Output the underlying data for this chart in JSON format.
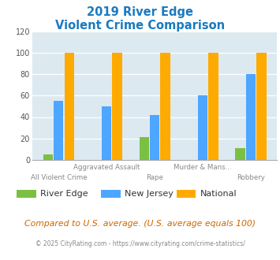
{
  "title_line1": "2019 River Edge",
  "title_line2": "Violent Crime Comparison",
  "title_color": "#1a7abf",
  "categories": [
    "All Violent Crime",
    "Aggravated Assault",
    "Rape",
    "Murder & Mans...",
    "Robbery"
  ],
  "top_labels": [
    "",
    "Aggravated Assault",
    "",
    "Murder & Mans...",
    ""
  ],
  "bottom_labels": [
    "All Violent Crime",
    "",
    "Rape",
    "",
    "Robbery"
  ],
  "river_edge": [
    5,
    0,
    21,
    0,
    11
  ],
  "new_jersey": [
    55,
    50,
    42,
    60,
    80
  ],
  "national": [
    100,
    100,
    100,
    100,
    100
  ],
  "colors": {
    "river_edge": "#7bc043",
    "new_jersey": "#4da6ff",
    "national": "#ffaa00",
    "fig_bg": "#ffffff",
    "plot_bg": "#dce9f0"
  },
  "ylim": [
    0,
    120
  ],
  "yticks": [
    0,
    20,
    40,
    60,
    80,
    100,
    120
  ],
  "legend_labels": [
    "River Edge",
    "New Jersey",
    "National"
  ],
  "footnote1": "Compared to U.S. average. (U.S. average equals 100)",
  "footnote2": "© 2025 CityRating.com - https://www.cityrating.com/crime-statistics/",
  "footnote1_color": "#cc6600",
  "footnote2_color": "#888888"
}
